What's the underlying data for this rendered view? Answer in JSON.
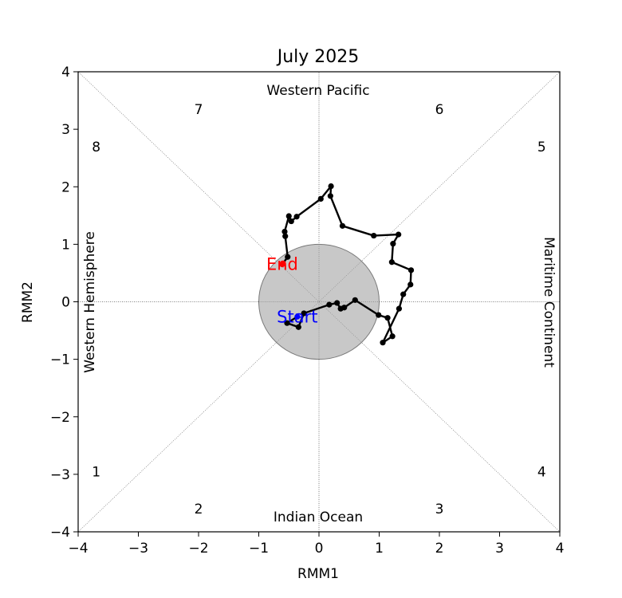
{
  "chart_data": {
    "type": "line",
    "title": "July 2025",
    "xlabel": "RMM1",
    "ylabel": "RMM2",
    "xlim": [
      -4,
      4
    ],
    "ylim": [
      -4,
      4
    ],
    "xticks": [
      "−4",
      "−3",
      "−2",
      "−1",
      "0",
      "1",
      "2",
      "3",
      "4"
    ],
    "yticks": [
      "−4",
      "−3",
      "−2",
      "−1",
      "0",
      "1",
      "2",
      "3",
      "4"
    ],
    "grid": false,
    "region_labels": {
      "top": "Western Pacific",
      "bottom": "Indian Ocean",
      "left": "Western Hemisphere",
      "right": "Maritime Continent"
    },
    "phase_labels": [
      {
        "text": "1",
        "x": -3.7,
        "y": -2.95
      },
      {
        "text": "2",
        "x": -2.0,
        "y": -3.6
      },
      {
        "text": "3",
        "x": 2.0,
        "y": -3.6
      },
      {
        "text": "4",
        "x": 3.7,
        "y": -2.95
      },
      {
        "text": "5",
        "x": 3.7,
        "y": 2.7
      },
      {
        "text": "6",
        "x": 2.0,
        "y": 3.35
      },
      {
        "text": "7",
        "x": -2.0,
        "y": 3.35
      },
      {
        "text": "8",
        "x": -3.7,
        "y": 2.7
      }
    ],
    "circle_radius": 1.0,
    "start_label": "Start",
    "end_label": "End",
    "start_color": "#0000ff",
    "end_color": "#ff0000",
    "line_color": "#000000",
    "series": [
      {
        "x": [
          -0.36,
          -0.53,
          -0.34,
          -0.25,
          0.17,
          0.3,
          0.36,
          0.42,
          0.6,
          0.99,
          1.14,
          1.22,
          1.06,
          1.33,
          1.4,
          1.52,
          1.53,
          1.21,
          1.23,
          1.32,
          0.91,
          0.39,
          0.19,
          0.2,
          0.03,
          -0.37,
          -0.46,
          -0.5,
          -0.57,
          -0.56,
          -0.52,
          -0.61
        ],
        "y": [
          -0.26,
          -0.37,
          -0.44,
          -0.2,
          -0.05,
          -0.02,
          -0.12,
          -0.1,
          0.03,
          -0.23,
          -0.28,
          -0.6,
          -0.71,
          -0.12,
          0.13,
          0.3,
          0.55,
          0.69,
          1.01,
          1.17,
          1.15,
          1.32,
          1.84,
          2.01,
          1.79,
          1.48,
          1.4,
          1.49,
          1.22,
          1.14,
          0.78,
          0.65
        ]
      }
    ]
  }
}
